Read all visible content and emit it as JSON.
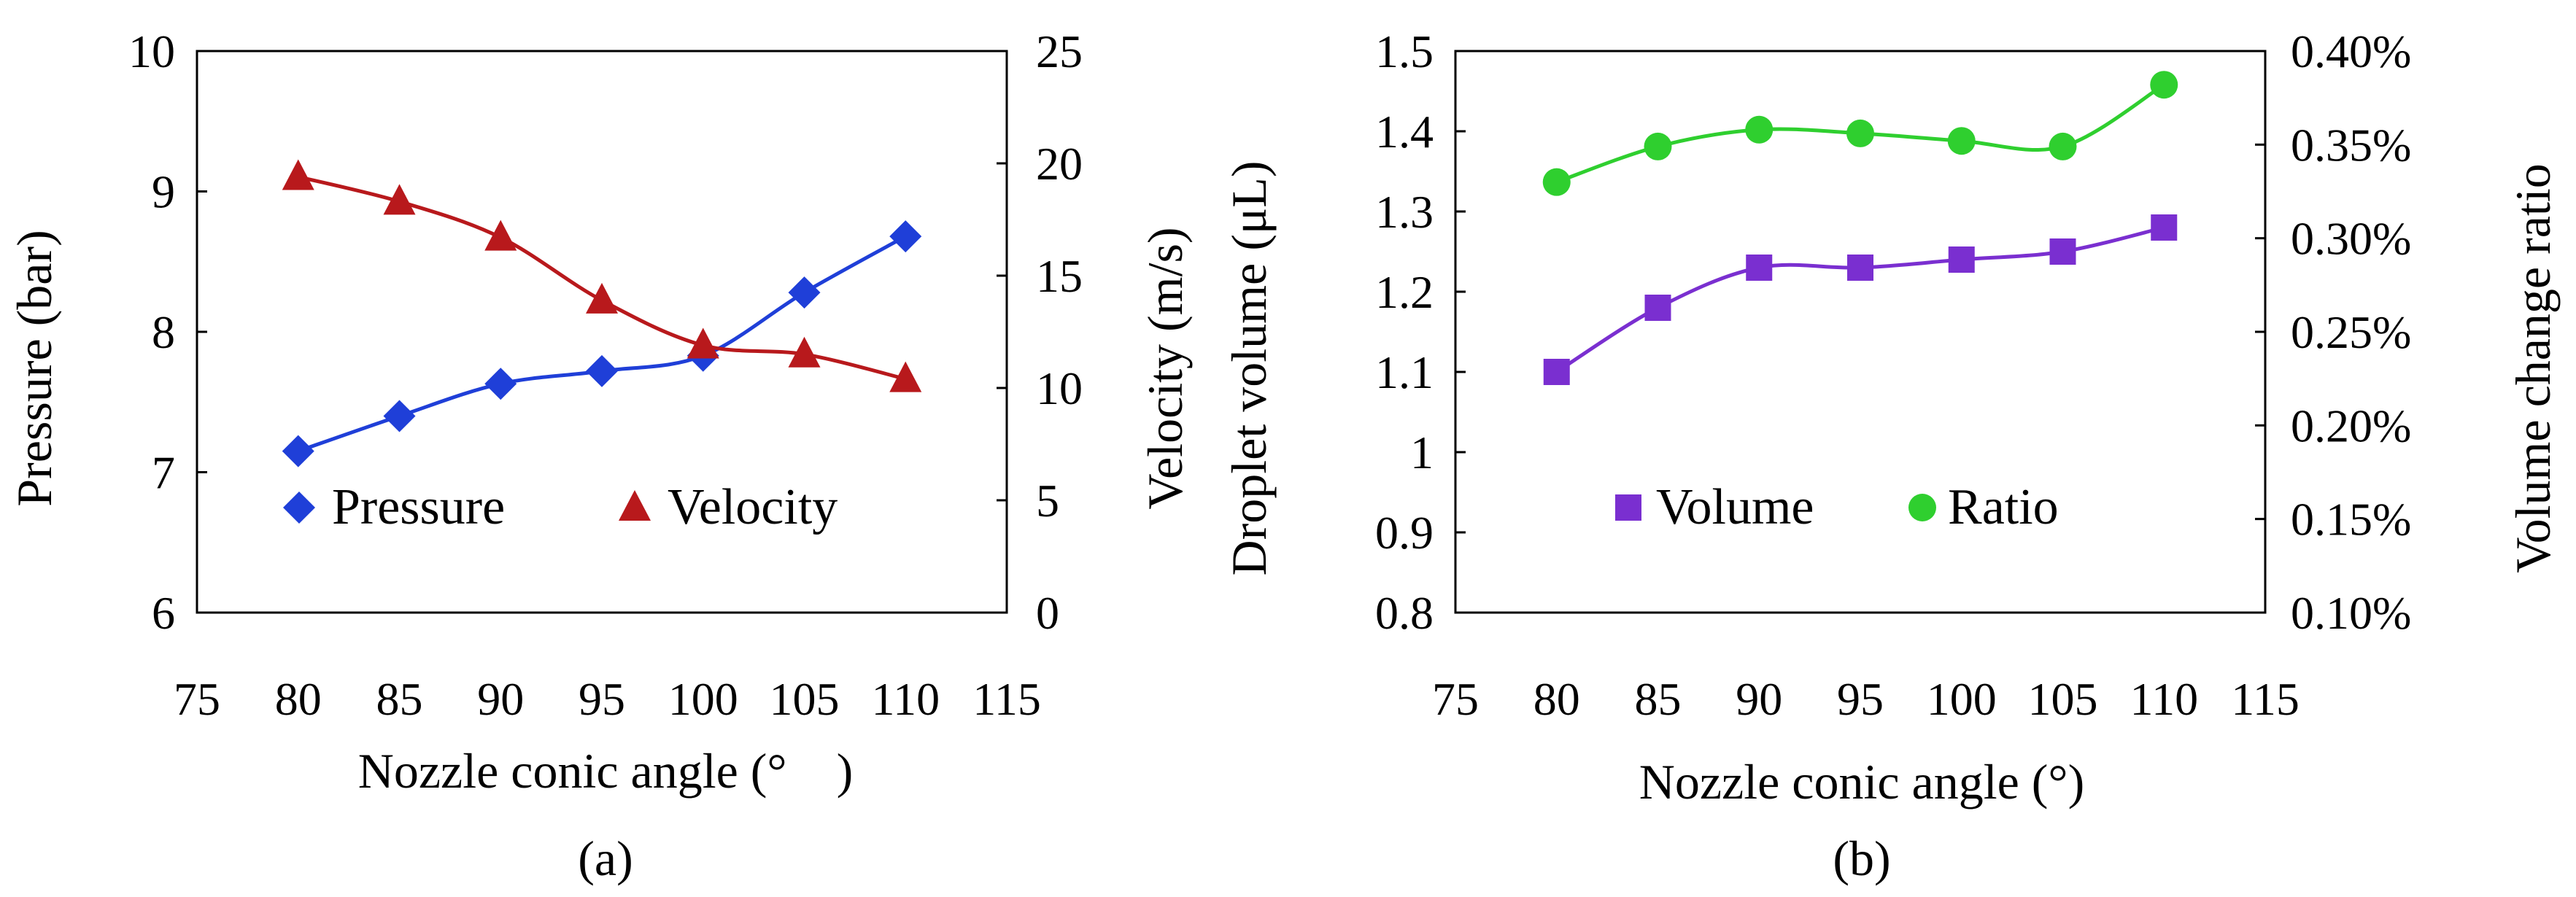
{
  "chart_data": [
    {
      "id": "a",
      "type": "line",
      "panel_label": "(a)",
      "xlabel": "Nozzle conic angle (°　)",
      "ylabel_left": "Pressure  (bar)",
      "ylabel_right": "Velocity (m/s)",
      "x_ticks": [
        "75",
        "80",
        "85",
        "90",
        "95",
        "100",
        "105",
        "110",
        "115"
      ],
      "x_tick_values": [
        75,
        80,
        85,
        90,
        95,
        100,
        105,
        110,
        115
      ],
      "y_left_ticks": [
        "6",
        "7",
        "8",
        "9",
        "10"
      ],
      "y_left_tick_values": [
        6,
        7,
        8,
        9,
        10
      ],
      "y_right_ticks": [
        "0",
        "5",
        "10",
        "15",
        "20",
        "25"
      ],
      "y_right_tick_values": [
        0,
        5,
        10,
        15,
        20,
        25
      ],
      "xlim": [
        75,
        115
      ],
      "ylim_left": [
        6,
        10
      ],
      "ylim_right": [
        0,
        25
      ],
      "x": [
        80,
        85,
        90,
        95,
        100,
        105,
        110
      ],
      "series": [
        {
          "name": "Pressure",
          "axis": "left",
          "marker": "diamond",
          "color": "#1f3fd8",
          "values": [
            7.15,
            7.4,
            7.63,
            7.72,
            7.83,
            8.28,
            8.68
          ]
        },
        {
          "name": "Velocity",
          "axis": "right",
          "marker": "triangle",
          "color": "#b8191c",
          "values": [
            19.4,
            18.3,
            16.7,
            13.9,
            11.9,
            11.5,
            10.4
          ]
        }
      ],
      "legend_position": "lower-left inside",
      "grid": false
    },
    {
      "id": "b",
      "type": "line",
      "panel_label": "(b)",
      "xlabel": "Nozzle conic angle (°)",
      "ylabel_left": "Droplet volume (μL)",
      "ylabel_right": "Volume change ratio",
      "x_ticks": [
        "75",
        "80",
        "85",
        "90",
        "95",
        "100",
        "105",
        "110",
        "115"
      ],
      "x_tick_values": [
        75,
        80,
        85,
        90,
        95,
        100,
        105,
        110,
        115
      ],
      "y_left_ticks": [
        "0.8",
        "0.9",
        "1",
        "1.1",
        "1.2",
        "1.3",
        "1.4",
        "1.5"
      ],
      "y_left_tick_values": [
        0.8,
        0.9,
        1.0,
        1.1,
        1.2,
        1.3,
        1.4,
        1.5
      ],
      "y_right_ticks": [
        "0.10%",
        "0.15%",
        "0.20%",
        "0.25%",
        "0.30%",
        "0.35%",
        "0.40%"
      ],
      "y_right_tick_values": [
        0.1,
        0.15,
        0.2,
        0.25,
        0.3,
        0.35,
        0.4
      ],
      "xlim": [
        75,
        115
      ],
      "ylim_left": [
        0.8,
        1.5
      ],
      "ylim_right": [
        0.1,
        0.4
      ],
      "x": [
        80,
        85,
        90,
        95,
        100,
        105,
        110
      ],
      "series": [
        {
          "name": "Volume",
          "axis": "left",
          "marker": "square",
          "color": "#7a2fd0",
          "values": [
            1.1,
            1.18,
            1.23,
            1.23,
            1.24,
            1.25,
            1.28
          ]
        },
        {
          "name": "Ratio",
          "axis": "right",
          "marker": "circle",
          "color": "#2fcf2f",
          "values": [
            0.33,
            0.349,
            0.358,
            0.356,
            0.352,
            0.349,
            0.382
          ]
        }
      ],
      "legend_position": "lower-center inside",
      "grid": false
    }
  ]
}
